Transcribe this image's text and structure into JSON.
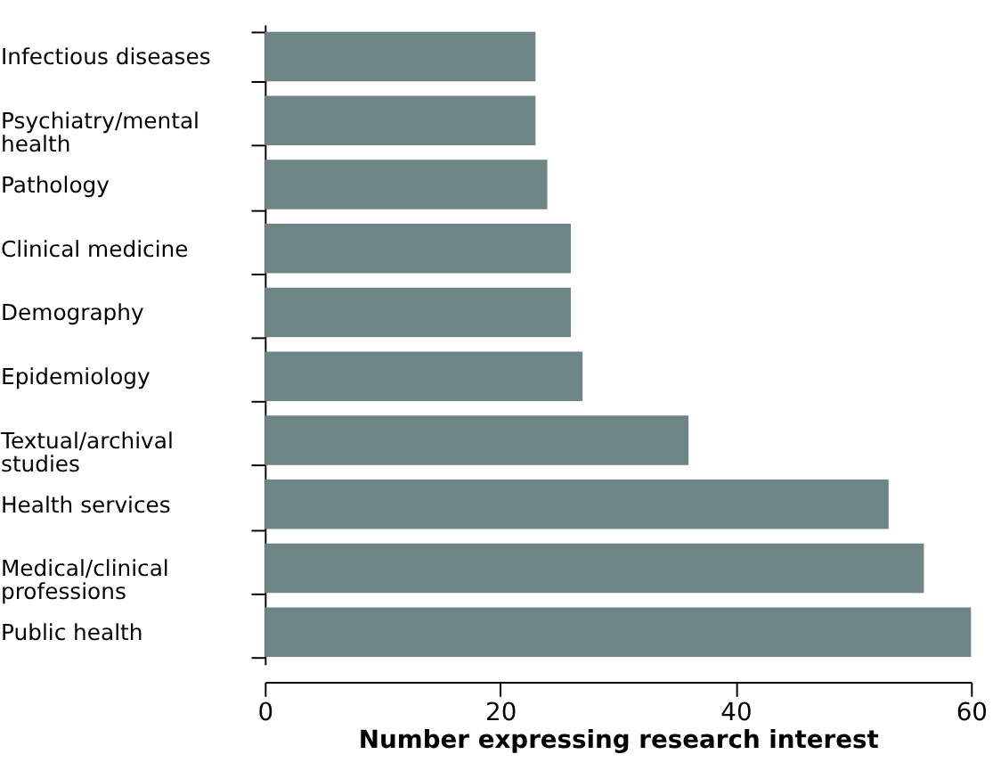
{
  "chart_data": {
    "type": "bar",
    "orientation": "horizontal",
    "xlabel": "Number expressing research interest",
    "categories": [
      "Infectious diseases",
      "Psychiatry/mental health",
      "Pathology",
      "Clinical medicine",
      "Demography",
      "Epidemiology",
      "Textual/archival studies",
      "Health services",
      "Medical/clinical professions",
      "Public health"
    ],
    "values": [
      23,
      23,
      24,
      26,
      26,
      27,
      36,
      53,
      56,
      60
    ],
    "color": "#6d8584",
    "xlim": [
      0,
      60
    ],
    "xticks": [
      0,
      20,
      40,
      60
    ],
    "grid": false
  }
}
